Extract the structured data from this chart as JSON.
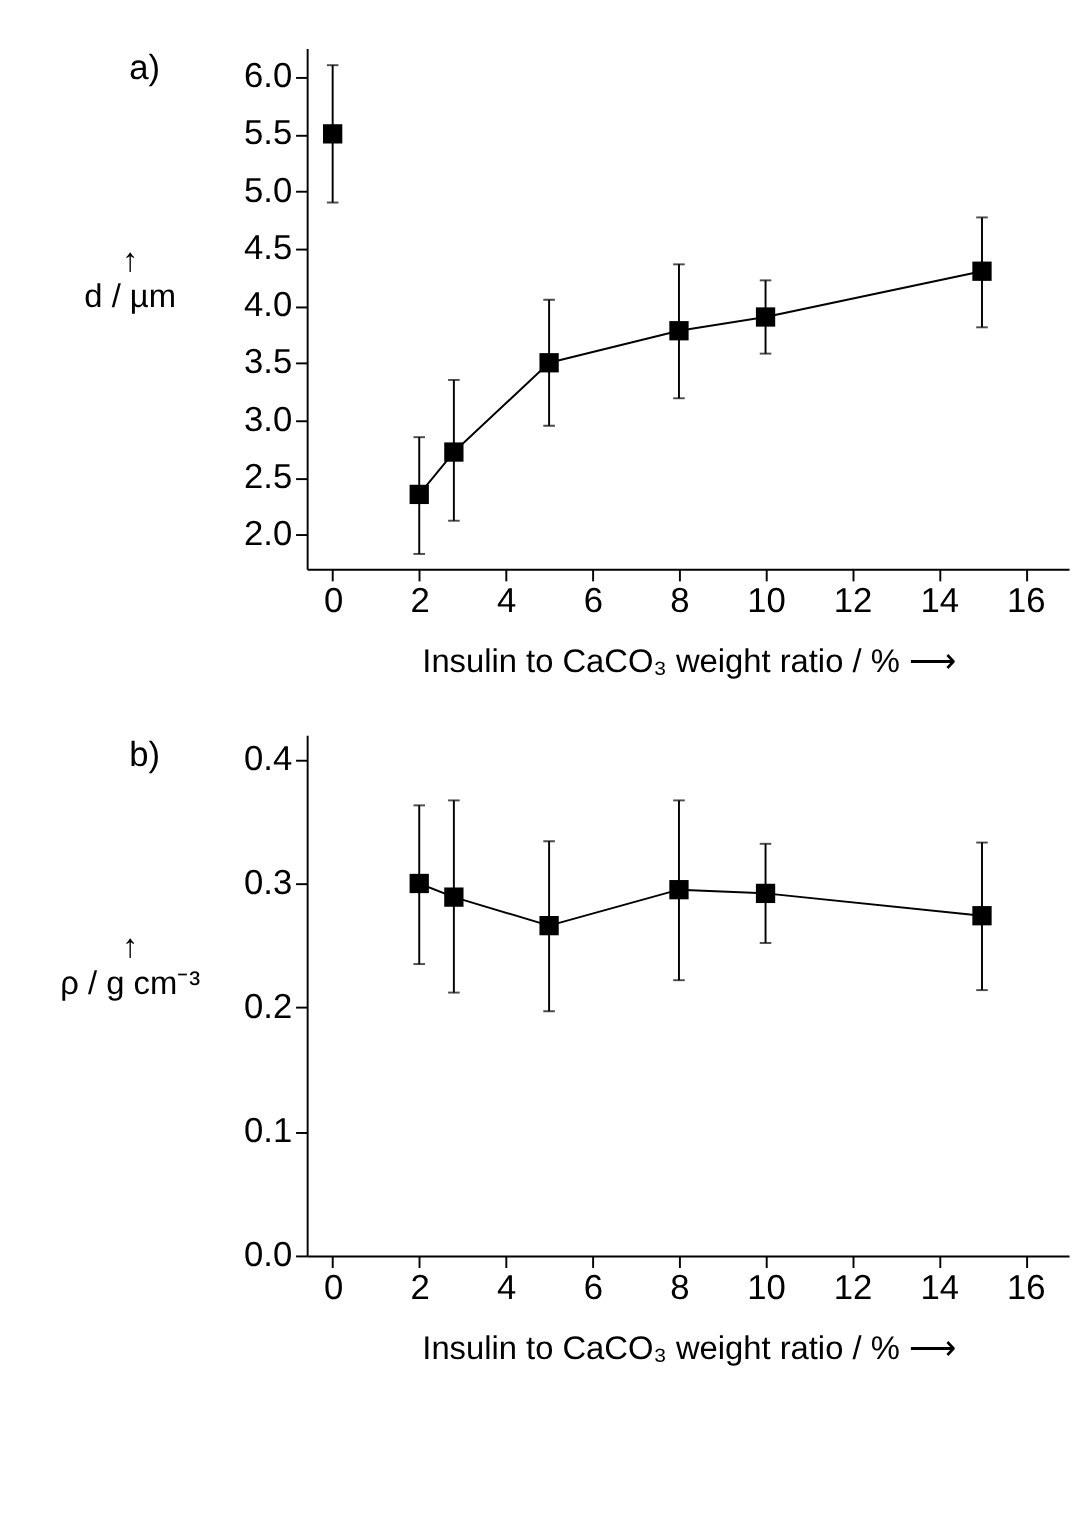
{
  "chart_data": [
    {
      "type": "line",
      "title": "a)",
      "xlabel": "Insulin to CaCO₃ weight ratio / % ⟶",
      "ylabel": "↑\nd / µm",
      "xlim": [
        -0.6,
        17
      ],
      "xticks": [
        0,
        2,
        4,
        6,
        8,
        10,
        12,
        14,
        16
      ],
      "ylim": [
        1.7,
        6.25
      ],
      "yticks": [
        {
          "value": 2,
          "label": "2.0"
        },
        2.5,
        {
          "value": 3,
          "label": "3.0"
        },
        3.5,
        {
          "value": 4,
          "label": "4.0"
        },
        4.5,
        {
          "value": 5,
          "label": "5.0"
        },
        5.5,
        {
          "value": 6,
          "label": "6.0"
        }
      ],
      "marker": "square",
      "series": [
        {
          "type": "scatter",
          "color": "#000000",
          "x": [
            0
          ],
          "values": [
            5.5
          ],
          "errors": [
            [
              4.9,
              6.1
            ]
          ]
        },
        {
          "color": "#000000",
          "x": [
            2,
            2.8,
            5,
            8,
            10,
            15
          ],
          "values": [
            2.35,
            2.72,
            3.5,
            3.78,
            3.9,
            4.3
          ],
          "errors": [
            [
              1.83,
              2.85
            ],
            [
              2.12,
              3.35
            ],
            [
              2.95,
              4.05
            ],
            [
              3.19,
              4.36
            ],
            [
              3.58,
              4.22
            ],
            [
              3.81,
              4.77
            ]
          ]
        }
      ]
    },
    {
      "type": "line",
      "title": "b)",
      "xlabel": "Insulin to CaCO₃ weight ratio / % ⟶",
      "ylabel": "↑\nρ / g cm⁻³",
      "xlim": [
        -0.6,
        17
      ],
      "xticks": [
        0,
        2,
        4,
        6,
        8,
        10,
        12,
        14,
        16
      ],
      "ylim": [
        0,
        0.42
      ],
      "yticks": [
        {
          "value": 0,
          "label": "0.0"
        },
        0.1,
        0.2,
        0.3,
        0.4
      ],
      "marker": "square",
      "series": [
        {
          "color": "#000000",
          "x": [
            2,
            2.8,
            5,
            8,
            10,
            15
          ],
          "values": [
            0.3,
            0.289,
            0.266,
            0.295,
            0.292,
            0.274
          ],
          "errors": [
            [
              0.235,
              0.363
            ],
            [
              0.212,
              0.367
            ],
            [
              0.197,
              0.334
            ],
            [
              0.222,
              0.367
            ],
            [
              0.252,
              0.332
            ],
            [
              0.214,
              0.333
            ]
          ]
        }
      ]
    }
  ]
}
